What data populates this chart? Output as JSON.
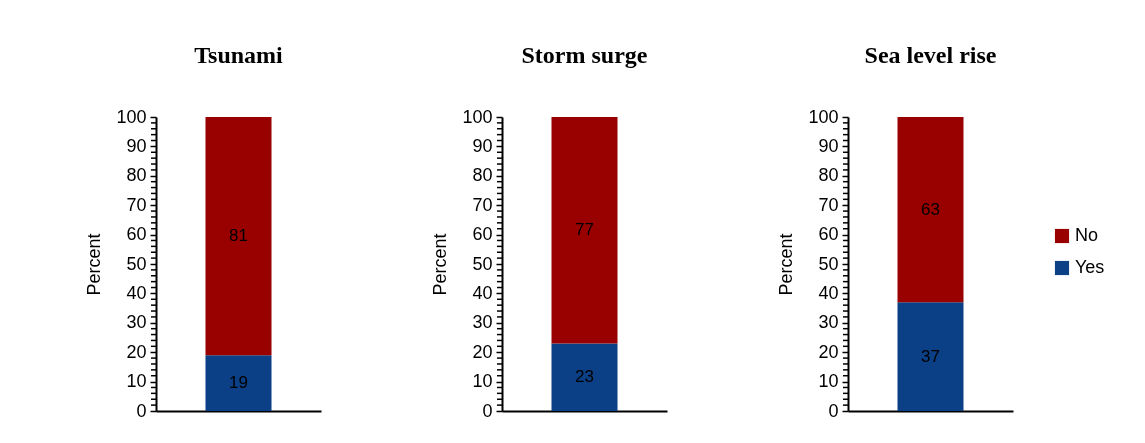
{
  "chart_data": [
    {
      "type": "bar",
      "stacked": true,
      "title": "Tsunami",
      "ylabel": "Percent",
      "categories": [
        null
      ],
      "ylim": [
        0,
        100
      ],
      "yticks": [
        0,
        {
          "value": 2,
          "label": null
        },
        {
          "value": 4,
          "label": null
        },
        {
          "value": 6,
          "label": null
        },
        {
          "value": 8,
          "label": null
        },
        10,
        {
          "value": 12,
          "label": null
        },
        {
          "value": 14,
          "label": null
        },
        {
          "value": 16,
          "label": null
        },
        {
          "value": 18,
          "label": null
        },
        20,
        {
          "value": 22,
          "label": null
        },
        {
          "value": 24,
          "label": null
        },
        {
          "value": 26,
          "label": null
        },
        {
          "value": 28,
          "label": null
        },
        30,
        {
          "value": 32,
          "label": null
        },
        {
          "value": 34,
          "label": null
        },
        {
          "value": 36,
          "label": null
        },
        {
          "value": 38,
          "label": null
        },
        40,
        {
          "value": 42,
          "label": null
        },
        {
          "value": 44,
          "label": null
        },
        {
          "value": 46,
          "label": null
        },
        {
          "value": 48,
          "label": null
        },
        50,
        {
          "value": 52,
          "label": null
        },
        {
          "value": 54,
          "label": null
        },
        {
          "value": 56,
          "label": null
        },
        {
          "value": 58,
          "label": null
        },
        60,
        {
          "value": 62,
          "label": null
        },
        {
          "value": 64,
          "label": null
        },
        {
          "value": 66,
          "label": null
        },
        {
          "value": 68,
          "label": null
        },
        70,
        {
          "value": 72,
          "label": null
        },
        {
          "value": 74,
          "label": null
        },
        {
          "value": 76,
          "label": null
        },
        {
          "value": 78,
          "label": null
        },
        80,
        {
          "value": 82,
          "label": null
        },
        {
          "value": 84,
          "label": null
        },
        {
          "value": 86,
          "label": null
        },
        {
          "value": 88,
          "label": null
        },
        90,
        {
          "value": 92,
          "label": null
        },
        {
          "value": 94,
          "label": null
        },
        {
          "value": 96,
          "label": null
        },
        {
          "value": 98,
          "label": null
        },
        100
      ],
      "tick_labels": "y",
      "data_labels": true,
      "legend": false,
      "series": [
        {
          "color": "#0b3f86",
          "values": [
            19
          ]
        },
        {
          "color": "#990000",
          "values": [
            81
          ]
        }
      ]
    },
    {
      "type": "bar",
      "stacked": true,
      "title": "Storm surge",
      "ylabel": "Percent",
      "categories": [
        null
      ],
      "ylim": [
        0,
        100
      ],
      "yticks": [
        0,
        {
          "value": 2,
          "label": null
        },
        {
          "value": 4,
          "label": null
        },
        {
          "value": 6,
          "label": null
        },
        {
          "value": 8,
          "label": null
        },
        10,
        {
          "value": 12,
          "label": null
        },
        {
          "value": 14,
          "label": null
        },
        {
          "value": 16,
          "label": null
        },
        {
          "value": 18,
          "label": null
        },
        20,
        {
          "value": 22,
          "label": null
        },
        {
          "value": 24,
          "label": null
        },
        {
          "value": 26,
          "label": null
        },
        {
          "value": 28,
          "label": null
        },
        30,
        {
          "value": 32,
          "label": null
        },
        {
          "value": 34,
          "label": null
        },
        {
          "value": 36,
          "label": null
        },
        {
          "value": 38,
          "label": null
        },
        40,
        {
          "value": 42,
          "label": null
        },
        {
          "value": 44,
          "label": null
        },
        {
          "value": 46,
          "label": null
        },
        {
          "value": 48,
          "label": null
        },
        50,
        {
          "value": 52,
          "label": null
        },
        {
          "value": 54,
          "label": null
        },
        {
          "value": 56,
          "label": null
        },
        {
          "value": 58,
          "label": null
        },
        60,
        {
          "value": 62,
          "label": null
        },
        {
          "value": 64,
          "label": null
        },
        {
          "value": 66,
          "label": null
        },
        {
          "value": 68,
          "label": null
        },
        70,
        {
          "value": 72,
          "label": null
        },
        {
          "value": 74,
          "label": null
        },
        {
          "value": 76,
          "label": null
        },
        {
          "value": 78,
          "label": null
        },
        80,
        {
          "value": 82,
          "label": null
        },
        {
          "value": 84,
          "label": null
        },
        {
          "value": 86,
          "label": null
        },
        {
          "value": 88,
          "label": null
        },
        90,
        {
          "value": 92,
          "label": null
        },
        {
          "value": 94,
          "label": null
        },
        {
          "value": 96,
          "label": null
        },
        {
          "value": 98,
          "label": null
        },
        100
      ],
      "tick_labels": "y",
      "data_labels": true,
      "legend": false,
      "series": [
        {
          "color": "#0b3f86",
          "values": [
            23
          ]
        },
        {
          "color": "#990000",
          "values": [
            77
          ]
        }
      ]
    },
    {
      "type": "bar",
      "stacked": true,
      "title": "Sea level rise",
      "ylabel": "Percent",
      "categories": [
        null
      ],
      "ylim": [
        0,
        100
      ],
      "yticks": [
        0,
        {
          "value": 2,
          "label": null
        },
        {
          "value": 4,
          "label": null
        },
        {
          "value": 6,
          "label": null
        },
        {
          "value": 8,
          "label": null
        },
        10,
        {
          "value": 12,
          "label": null
        },
        {
          "value": 14,
          "label": null
        },
        {
          "value": 16,
          "label": null
        },
        {
          "value": 18,
          "label": null
        },
        20,
        {
          "value": 22,
          "label": null
        },
        {
          "value": 24,
          "label": null
        },
        {
          "value": 26,
          "label": null
        },
        {
          "value": 28,
          "label": null
        },
        30,
        {
          "value": 32,
          "label": null
        },
        {
          "value": 34,
          "label": null
        },
        {
          "value": 36,
          "label": null
        },
        {
          "value": 38,
          "label": null
        },
        40,
        {
          "value": 42,
          "label": null
        },
        {
          "value": 44,
          "label": null
        },
        {
          "value": 46,
          "label": null
        },
        {
          "value": 48,
          "label": null
        },
        50,
        {
          "value": 52,
          "label": null
        },
        {
          "value": 54,
          "label": null
        },
        {
          "value": 56,
          "label": null
        },
        {
          "value": 58,
          "label": null
        },
        60,
        {
          "value": 62,
          "label": null
        },
        {
          "value": 64,
          "label": null
        },
        {
          "value": 66,
          "label": null
        },
        {
          "value": 68,
          "label": null
        },
        70,
        {
          "value": 72,
          "label": null
        },
        {
          "value": 74,
          "label": null
        },
        {
          "value": 76,
          "label": null
        },
        {
          "value": 78,
          "label": null
        },
        80,
        {
          "value": 82,
          "label": null
        },
        {
          "value": 84,
          "label": null
        },
        {
          "value": 86,
          "label": null
        },
        {
          "value": 88,
          "label": null
        },
        90,
        {
          "value": 92,
          "label": null
        },
        {
          "value": 94,
          "label": null
        },
        {
          "value": 96,
          "label": null
        },
        {
          "value": 98,
          "label": null
        },
        100
      ],
      "tick_labels": "y",
      "data_labels": true,
      "legend": "right",
      "series": [
        {
          "name": "Yes",
          "color": "#0b3f86",
          "values": [
            37
          ]
        },
        {
          "name": "No",
          "color": "#990000",
          "values": [
            63
          ]
        }
      ]
    }
  ]
}
